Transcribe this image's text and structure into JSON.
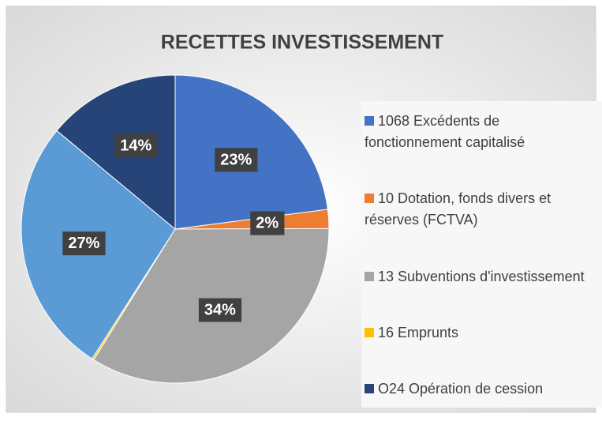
{
  "chart_data": {
    "type": "pie",
    "title": "RECETTES INVESTISSEMENT",
    "categories": [
      "1068 Excédents de fonctionnement capitalisé",
      "10 Dotation, fonds divers et réserves (FCTVA)",
      "13 Subventions d'investissement",
      "16 Emprunts",
      null,
      "O24 Opération de cession"
    ],
    "values": [
      23,
      2,
      34,
      0.2,
      27,
      14
    ],
    "value_labels": [
      "23%",
      "2%",
      "34%",
      null,
      "27%",
      "14%"
    ],
    "colors": [
      "#4472c4",
      "#ed7d31",
      "#a5a5a5",
      "#ffc000",
      "#5b9bd5",
      "#264478"
    ],
    "legend": "right"
  }
}
